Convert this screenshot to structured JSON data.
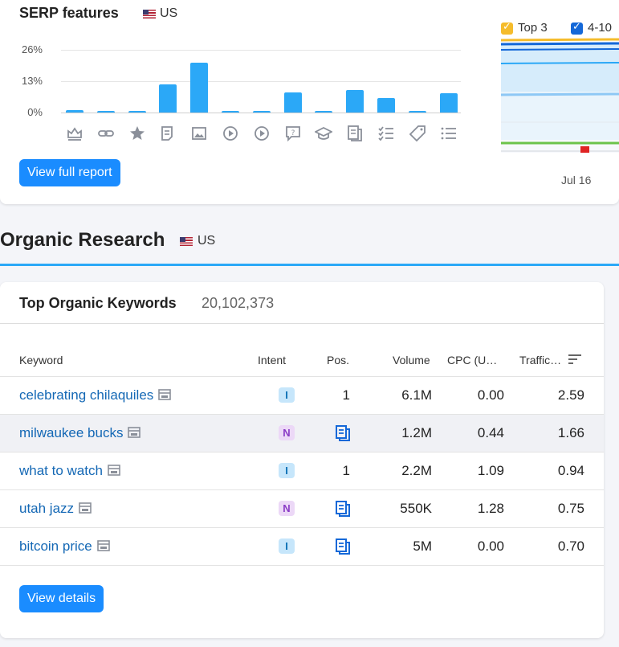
{
  "serp": {
    "title": "SERP features",
    "country": "US",
    "y_ticks": [
      "26%",
      "13%",
      "0%"
    ],
    "button_label": "View full report",
    "features": [
      {
        "icon": "crown-icon",
        "value": 1.0
      },
      {
        "icon": "link-icon",
        "value": 0.5
      },
      {
        "icon": "star-icon",
        "value": 0.6
      },
      {
        "icon": "article-icon",
        "value": 11.8
      },
      {
        "icon": "image-icon",
        "value": 20.6
      },
      {
        "icon": "video-play-icon",
        "value": 0.4
      },
      {
        "icon": "video-carousel-icon",
        "value": 0.5
      },
      {
        "icon": "faq-icon",
        "value": 8.3
      },
      {
        "icon": "graduation-cap-icon",
        "value": 0.4
      },
      {
        "icon": "news-icon",
        "value": 9.2
      },
      {
        "icon": "checklist-icon",
        "value": 6.0
      },
      {
        "icon": "tag-icon",
        "value": 0.4
      },
      {
        "icon": "list-icon",
        "value": 8.1
      }
    ]
  },
  "position_chart": {
    "legend": [
      {
        "label": "Top 3",
        "color": "#f5bc2c"
      },
      {
        "label": "4-10",
        "color": "#1468d8"
      }
    ],
    "x_label": "Jul 16"
  },
  "organic": {
    "title": "Organic Research",
    "country": "US"
  },
  "keywords": {
    "title": "Top Organic Keywords",
    "count": "20,102,373",
    "headers": {
      "keyword": "Keyword",
      "intent": "Intent",
      "pos": "Pos.",
      "volume": "Volume",
      "cpc": "CPC (U…",
      "traffic": "Traffic…"
    },
    "rows": [
      {
        "keyword": "celebrating chilaquiles",
        "intent": "I",
        "pos": "1",
        "pos_icon": false,
        "volume": "6.1M",
        "cpc": "0.00",
        "traffic": "2.59"
      },
      {
        "keyword": "milwaukee bucks",
        "intent": "N",
        "pos": "",
        "pos_icon": true,
        "volume": "1.2M",
        "cpc": "0.44",
        "traffic": "1.66"
      },
      {
        "keyword": "what to watch",
        "intent": "I",
        "pos": "1",
        "pos_icon": false,
        "volume": "2.2M",
        "cpc": "1.09",
        "traffic": "0.94"
      },
      {
        "keyword": "utah jazz",
        "intent": "N",
        "pos": "",
        "pos_icon": true,
        "volume": "550K",
        "cpc": "1.28",
        "traffic": "0.75"
      },
      {
        "keyword": "bitcoin price",
        "intent": "I",
        "pos": "",
        "pos_icon": true,
        "volume": "5M",
        "cpc": "0.00",
        "traffic": "0.70"
      }
    ],
    "button_label": "View details"
  },
  "colors": {
    "accent": "#1a8cff",
    "bar": "#2ba8f7",
    "link": "#1468b5"
  }
}
